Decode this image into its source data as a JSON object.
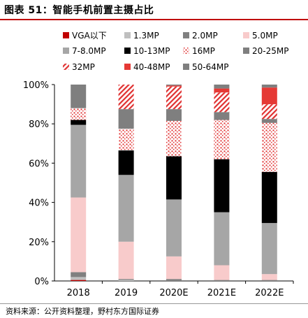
{
  "header": {
    "title": "图表 51：智能手机前置主摄占比"
  },
  "footer": {
    "source": "资料来源：公开资料整理，野村东方国际证券"
  },
  "chart_data": {
    "type": "bar",
    "stacked": true,
    "categories": [
      "2018",
      "2019",
      "2020E",
      "2021E",
      "2022E"
    ],
    "ylim": [
      0,
      100
    ],
    "yticks": [
      "0%",
      "20%",
      "40%",
      "60%",
      "80%",
      "100%"
    ],
    "legend_position": "top",
    "series": [
      {
        "name": "VGA以下",
        "color": "#c00000",
        "pattern": "solid",
        "values": [
          0.5,
          0,
          0,
          0,
          0
        ]
      },
      {
        "name": "1.3MP",
        "color": "#bfbfbf",
        "pattern": "solid",
        "values": [
          1.5,
          0.5,
          0,
          0,
          0
        ]
      },
      {
        "name": "2.0MP",
        "color": "#808080",
        "pattern": "solid",
        "values": [
          2.5,
          0.5,
          1,
          0.5,
          0.5
        ]
      },
      {
        "name": "5.0MP",
        "color": "#f8cbcb",
        "pattern": "solid",
        "values": [
          38,
          19,
          11.5,
          7.5,
          3
        ]
      },
      {
        "name": "7-8.0MP",
        "color": "#a6a6a6",
        "pattern": "solid",
        "values": [
          37,
          34,
          29,
          27,
          26
        ]
      },
      {
        "name": "10-13MP",
        "color": "#000000",
        "pattern": "solid",
        "values": [
          2.5,
          12.5,
          22,
          27,
          26
        ]
      },
      {
        "name": "16MP",
        "color": "#e03030",
        "pattern": "dots",
        "values": [
          6,
          11,
          18,
          20,
          25
        ]
      },
      {
        "name": "20-25MP",
        "color": "#7f7f7f",
        "pattern": "solid",
        "values": [
          12,
          10,
          6,
          4,
          2
        ]
      },
      {
        "name": "32MP",
        "color": "#e03030",
        "pattern": "diagonal",
        "values": [
          0,
          12.5,
          11.5,
          10,
          7.5
        ]
      },
      {
        "name": "40-48MP",
        "color": "#e53935",
        "pattern": "solid",
        "values": [
          0,
          0,
          0.5,
          2,
          8.5
        ]
      },
      {
        "name": "50-64MP",
        "color": "#7f7f7f",
        "pattern": "solid",
        "values": [
          0,
          0,
          0.5,
          2,
          1.5
        ]
      }
    ]
  }
}
